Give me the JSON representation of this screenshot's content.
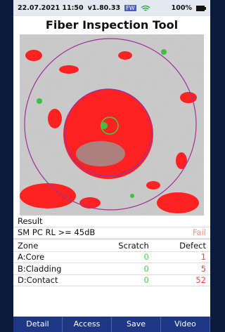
{
  "status_bar": {
    "datetime": "22.07.2021 11:50",
    "version": "v1.80.33",
    "badge": "FW",
    "battery": "100%"
  },
  "header": {
    "title": "Fiber Inspection Tool"
  },
  "result": {
    "label": "Result",
    "test": "SM PC RL >= 45dB",
    "verdict": "Fail"
  },
  "table": {
    "columns": [
      "Zone",
      "Scratch",
      "Defect"
    ],
    "rows": [
      [
        "A:Core",
        "0",
        "1"
      ],
      [
        "B:Cladding",
        "0",
        "5"
      ],
      [
        "D:Contact",
        "0",
        "52"
      ]
    ]
  },
  "buttons": [
    "Detail",
    "Access",
    "Save",
    "Video"
  ]
}
